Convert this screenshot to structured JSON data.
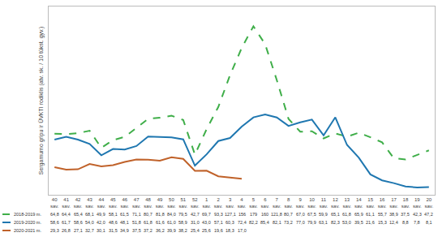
{
  "chart_data": {
    "type": "line",
    "ylabel": "Sergamumo gripu ir ŪVKTI rodiklis (atv. sk. / 10 tūkst. gyv.)",
    "categories": [
      "40 sav.",
      "41 sav.",
      "42 sav.",
      "43 sav.",
      "44 sav.",
      "45 sav.",
      "46 sav.",
      "47 sav.",
      "48 sav.",
      "49 sav.",
      "50 sav.",
      "51 sav.",
      "52 sav.",
      "1 sav.",
      "2 sav.",
      "3 sav.",
      "4 sav.",
      "5 sav.",
      "6 sav.",
      "7 sav.",
      "8 sav.",
      "9 sav.",
      "10 sav.",
      "11 sav.",
      "12 sav.",
      "13 sav.",
      "14 sav.",
      "15 sav.",
      "16 sav.",
      "17 sav.",
      "18 sav.",
      "19 sav.",
      "20 sav."
    ],
    "series": [
      {
        "name": "2018-2019 m.",
        "color": "#3fae49",
        "line_style": "dash",
        "values": [
          64.8,
          64.4,
          65.4,
          68.1,
          49.9,
          58.1,
          61.5,
          71.1,
          80.7,
          81.8,
          84.0,
          79.5,
          42.7,
          69.7,
          93.3,
          127.1,
          156,
          179,
          160,
          121.8,
          80.7,
          67.0,
          67.5,
          59.9,
          65.1,
          61.8,
          65.9,
          61.1,
          55.7,
          38.9,
          37.5,
          42.3,
          47.2
        ],
        "value_labels": [
          "64,8",
          "64,4",
          "65,4",
          "68,1",
          "49,9",
          "58,1",
          "61,5",
          "71,1",
          "80,7",
          "81,8",
          "84,0",
          "79,5",
          "42,7",
          "69,7",
          "93,3",
          "127,1",
          "156",
          "179",
          "160",
          "121,8",
          "80,7",
          "67,0",
          "67,5",
          "59,9",
          "65,1",
          "61,8",
          "65,9",
          "61,1",
          "55,7",
          "38,9",
          "37,5",
          "42,3",
          "47,2"
        ]
      },
      {
        "name": "2019-2020 m.",
        "color": "#1f77b0",
        "line_style": "solid",
        "values": [
          58.6,
          61.7,
          58.6,
          54.0,
          42.0,
          48.6,
          48.1,
          51.8,
          61.8,
          61.6,
          61.0,
          58.9,
          31.0,
          43.0,
          57.1,
          60.3,
          72.4,
          82.2,
          85.4,
          82.1,
          73.2,
          77.0,
          79.9,
          63.1,
          82.3,
          53.0,
          39.5,
          21.6,
          15.3,
          12.4,
          8.8,
          7.8,
          8.1
        ],
        "value_labels": [
          "58,6",
          "61,7",
          "58,6",
          "54,0",
          "42,0",
          "48,6",
          "48,1",
          "51,8",
          "61,8",
          "61,6",
          "61,0",
          "58,9",
          "31,0",
          "43,0",
          "57,1",
          "60,3",
          "72,4",
          "82,2",
          "85,4",
          "82,1",
          "73,2",
          "77,0",
          "79,9",
          "63,1",
          "82,3",
          "53,0",
          "39,5",
          "21,6",
          "15,3",
          "12,4",
          "8,8",
          "7,8",
          "8,1"
        ]
      },
      {
        "name": "2020-2021 m.",
        "color": "#c0622a",
        "line_style": "solid",
        "values": [
          29.3,
          26.8,
          27.1,
          32.7,
          30.1,
          31.5,
          34.9,
          37.5,
          37.2,
          36.2,
          39.9,
          38.2,
          25.4,
          25.6,
          19.6,
          18.3,
          17.0,
          null,
          null,
          null,
          null,
          null,
          null,
          null,
          null,
          null,
          null,
          null,
          null,
          null,
          null,
          null,
          null
        ],
        "value_labels": [
          "29,3",
          "26,8",
          "27,1",
          "32,7",
          "30,1",
          "31,5",
          "34,9",
          "37,5",
          "37,2",
          "36,2",
          "39,9",
          "38,2",
          "25,4",
          "25,6",
          "19,6",
          "18,3",
          "17,0",
          null,
          null,
          null,
          null,
          null,
          null,
          null,
          null,
          null,
          null,
          null,
          null,
          null,
          null,
          null,
          null
        ]
      }
    ],
    "ylim": [
      0,
      200
    ],
    "grid": false,
    "tick_labels": "x"
  }
}
